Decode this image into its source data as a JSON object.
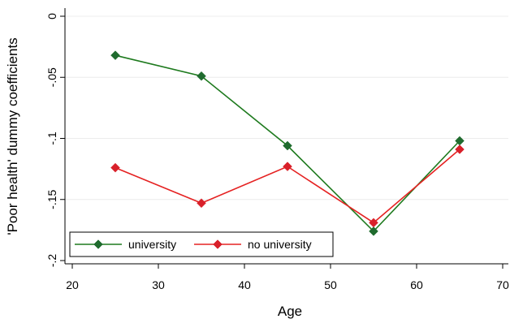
{
  "chart_data": {
    "type": "line",
    "xlabel": "Age",
    "ylabel": "'Poor health' dummy coefficients",
    "xlim": [
      20,
      70
    ],
    "ylim": [
      -0.2,
      0
    ],
    "xticks": [
      20,
      30,
      40,
      50,
      60,
      70
    ],
    "xtick_labels": [
      "20",
      "30",
      "40",
      "50",
      "60",
      "70"
    ],
    "yticks": [
      0,
      -0.05,
      -0.1,
      -0.15,
      -0.2
    ],
    "ytick_labels": [
      "0",
      "-.05",
      "-.1",
      "-.15",
      "-.2"
    ],
    "grid": true,
    "legend_position": "bottom-left",
    "x": [
      25,
      35,
      45,
      55,
      65
    ],
    "series": [
      {
        "name": "university",
        "color": "#1e7a1e",
        "marker_color": "#1f6b2e",
        "values": [
          -0.032,
          -0.049,
          -0.106,
          -0.176,
          -0.102
        ]
      },
      {
        "name": "no university",
        "color": "#e52222",
        "marker_color": "#d9202a",
        "values": [
          -0.124,
          -0.153,
          -0.123,
          -0.169,
          -0.109
        ]
      }
    ]
  }
}
